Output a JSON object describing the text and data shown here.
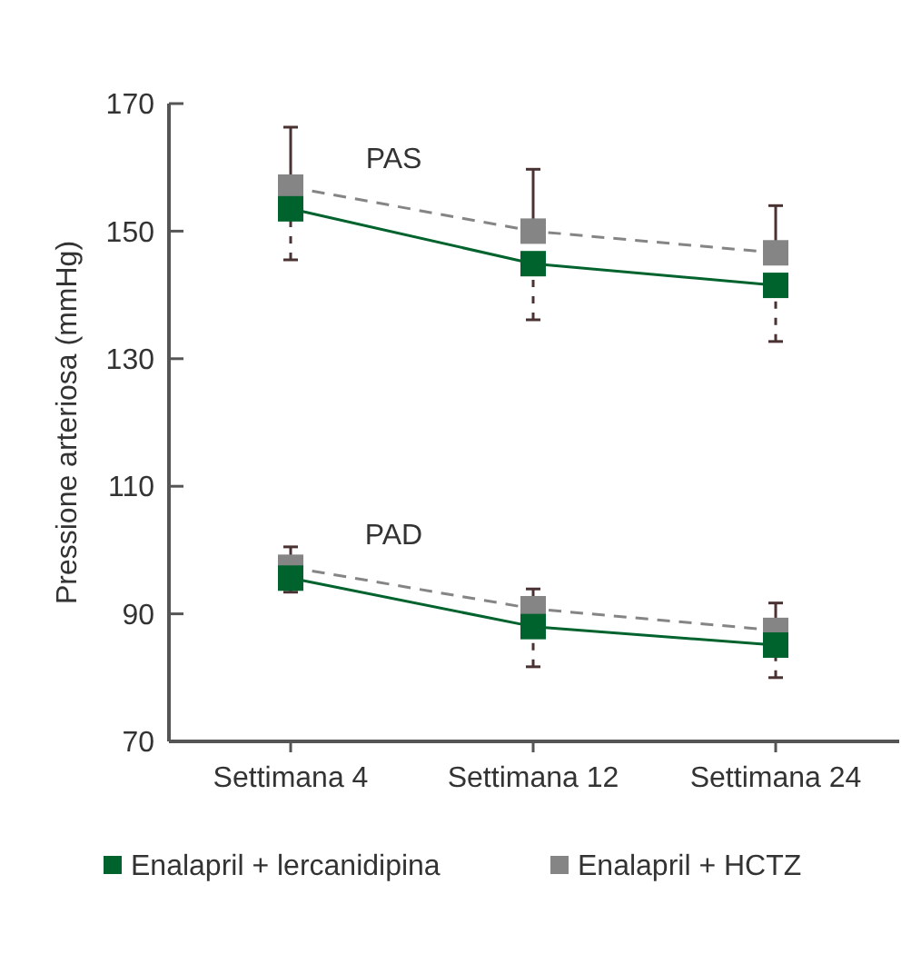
{
  "chart_data": {
    "type": "line",
    "ylabel": "Pressione arteriosa (mmHg)",
    "categories": [
      "Settimana 4",
      "Settimana 12",
      "Settimana 24"
    ],
    "ylim": [
      70,
      170
    ],
    "yticks": [
      70,
      90,
      110,
      130,
      150,
      170
    ],
    "legend": "bottom",
    "marker": "square",
    "series": [
      {
        "name": "Enalapril + lercanidipina",
        "color": "#00632e",
        "line_style": "solid",
        "values": [
          153.5,
          144.9,
          141.5
        ],
        "errors": [
          [
            145.5,
            153.5
          ],
          [
            136.1,
            144.9
          ],
          [
            132.7,
            141.5
          ]
        ]
      },
      {
        "name": "Enalapril + HCTZ",
        "color": "#858585",
        "line_style": "dashed",
        "values": [
          156.9,
          150,
          146.6
        ],
        "errors": [
          [
            156.9,
            166.3
          ],
          [
            150,
            159.7
          ],
          [
            146.6,
            154
          ]
        ]
      },
      {
        "color": "#00632e",
        "line_style": "solid",
        "values": [
          95.6,
          88,
          85.1
        ],
        "errors": [
          [
            93.4,
            95.6
          ],
          [
            81.7,
            88
          ],
          [
            80,
            85.1
          ]
        ]
      },
      {
        "color": "#858585",
        "line_style": "dashed",
        "values": [
          97.3,
          90.8,
          87.4
        ],
        "errors": [
          [
            97.3,
            100.5
          ],
          [
            90.8,
            93.9
          ],
          [
            87.4,
            91.7
          ]
        ]
      }
    ],
    "annotations": [
      "PAS",
      "PAD"
    ]
  }
}
